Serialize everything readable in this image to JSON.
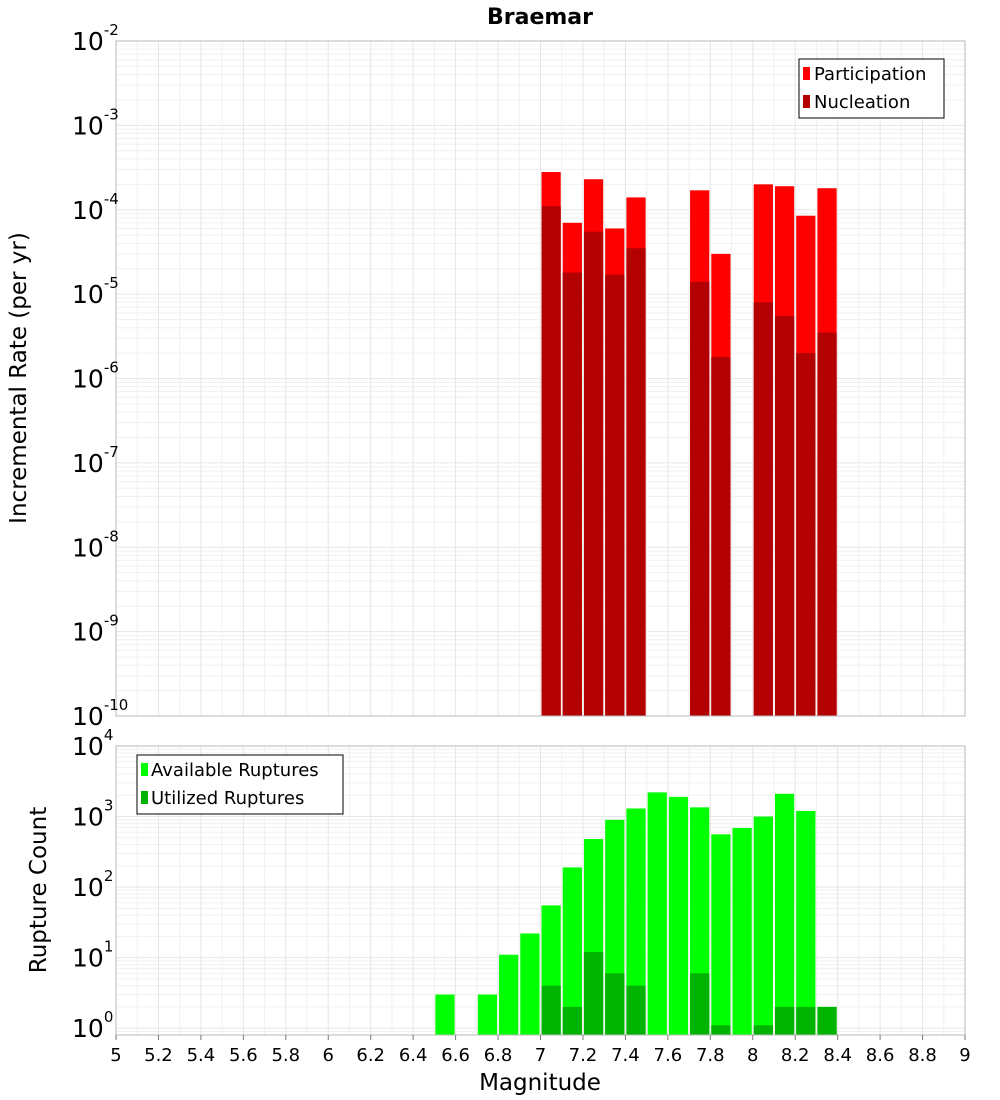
{
  "chart_data": [
    {
      "type": "bar",
      "title": "Braemar",
      "xlabel": "",
      "ylabel": "Incremental Rate (per yr)",
      "yscale": "log",
      "ylim": [
        1e-10,
        0.01
      ],
      "xlim": [
        5,
        9
      ],
      "bin_width": 0.1,
      "legend_position": "top-right",
      "y_ticks": [
        {
          "base": "10",
          "exp": "-10",
          "value": 1e-10
        },
        {
          "base": "10",
          "exp": "-9",
          "value": 1e-09
        },
        {
          "base": "10",
          "exp": "-8",
          "value": 1e-08
        },
        {
          "base": "10",
          "exp": "-7",
          "value": 1e-07
        },
        {
          "base": "10",
          "exp": "-6",
          "value": 1e-06
        },
        {
          "base": "10",
          "exp": "-5",
          "value": 1e-05
        },
        {
          "base": "10",
          "exp": "-4",
          "value": 0.0001
        },
        {
          "base": "10",
          "exp": "-3",
          "value": 0.001
        },
        {
          "base": "10",
          "exp": "-2",
          "value": 0.01
        }
      ],
      "series": [
        {
          "name": "Participation",
          "color": "#ff0000",
          "x": [
            7.05,
            7.15,
            7.25,
            7.35,
            7.45,
            7.75,
            7.85,
            8.05,
            8.15,
            8.25,
            8.35
          ],
          "values": [
            0.00028,
            7e-05,
            0.00023,
            6e-05,
            0.00014,
            0.00017,
            3e-05,
            0.0002,
            0.00019,
            8.5e-05,
            0.00018
          ]
        },
        {
          "name": "Nucleation",
          "color": "#b30000",
          "x": [
            7.05,
            7.15,
            7.25,
            7.35,
            7.45,
            7.75,
            7.85,
            8.05,
            8.15,
            8.25,
            8.35
          ],
          "values": [
            0.00011,
            1.8e-05,
            5.5e-05,
            1.7e-05,
            3.5e-05,
            1.4e-05,
            1.8e-06,
            8e-06,
            5.5e-06,
            2e-06,
            3.5e-06
          ]
        }
      ]
    },
    {
      "type": "bar",
      "title": "",
      "xlabel": "Magnitude",
      "ylabel": "Rupture Count",
      "yscale": "log",
      "ylim": [
        0.8,
        10000
      ],
      "xlim": [
        5,
        9
      ],
      "bin_width": 0.1,
      "legend_position": "top-left",
      "y_ticks": [
        {
          "base": "10",
          "exp": "0",
          "value": 1
        },
        {
          "base": "10",
          "exp": "1",
          "value": 10
        },
        {
          "base": "10",
          "exp": "2",
          "value": 100
        },
        {
          "base": "10",
          "exp": "3",
          "value": 1000
        },
        {
          "base": "10",
          "exp": "4",
          "value": 10000
        }
      ],
      "x_ticks": [
        "5",
        "5.2",
        "5.4",
        "5.6",
        "5.8",
        "6",
        "6.2",
        "6.4",
        "6.6",
        "6.8",
        "7",
        "7.2",
        "7.4",
        "7.6",
        "7.8",
        "8",
        "8.2",
        "8.4",
        "8.6",
        "8.8",
        "9"
      ],
      "series": [
        {
          "name": "Available Ruptures",
          "color": "#00ff00",
          "x": [
            6.55,
            6.75,
            6.85,
            6.95,
            7.05,
            7.15,
            7.25,
            7.35,
            7.45,
            7.55,
            7.65,
            7.75,
            7.85,
            7.95,
            8.05,
            8.15,
            8.25,
            8.35
          ],
          "values": [
            3,
            3,
            11,
            22,
            55,
            190,
            480,
            900,
            1300,
            2200,
            1900,
            1350,
            560,
            690,
            1000,
            2100,
            1200,
            2
          ]
        },
        {
          "name": "Utilized Ruptures",
          "color": "#00b300",
          "x": [
            7.05,
            7.15,
            7.25,
            7.35,
            7.45,
            7.75,
            7.85,
            8.05,
            8.15,
            8.25,
            8.35
          ],
          "values": [
            4,
            2,
            12,
            6,
            4,
            6,
            1.1,
            1.1,
            2,
            2,
            2
          ]
        }
      ]
    }
  ]
}
